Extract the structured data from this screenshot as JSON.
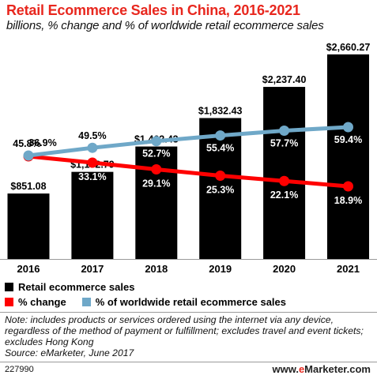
{
  "title": "Retail Ecommerce Sales in China, 2016-2021",
  "subtitle": "billions, % change and % of worldwide retail ecommerce sales",
  "chart_data": {
    "type": "bar",
    "categories": [
      "2016",
      "2017",
      "2018",
      "2019",
      "2020",
      "2021"
    ],
    "ylim": [
      0,
      2700
    ],
    "grid": false,
    "series": [
      {
        "name": "Retail ecommerce sales",
        "type": "bar",
        "color": "#000000",
        "values": [
          851.08,
          1132.79,
          1462.43,
          1832.43,
          2237.4,
          2660.27
        ],
        "labels": [
          "$851.08",
          "$1,132.79",
          "$1,462.43",
          "$1,832.43",
          "$2,237.40",
          "$2,660.27"
        ]
      },
      {
        "name": "% change",
        "type": "line",
        "color": "#ff0000",
        "values": [
          36.9,
          33.1,
          29.1,
          25.3,
          22.1,
          18.9
        ],
        "labels": [
          "36.9%",
          "33.1%",
          "29.1%",
          "25.3%",
          "22.1%",
          "18.9%"
        ]
      },
      {
        "name": "% of worldwide retail ecommerce sales",
        "type": "line",
        "color": "#6fa8c8",
        "values": [
          45.8,
          49.5,
          52.7,
          55.4,
          57.7,
          59.4
        ],
        "labels": [
          "45.8%",
          "49.5%",
          "52.7%",
          "55.4%",
          "57.7%",
          "59.4%"
        ]
      }
    ],
    "legend_position": "bottom"
  },
  "legend": {
    "items": [
      {
        "label": "Retail ecommerce sales",
        "color": "#000000"
      },
      {
        "label": "% change",
        "color": "#ff0000"
      },
      {
        "label": "% of worldwide retail ecommerce sales",
        "color": "#6fa8c8"
      }
    ]
  },
  "note": "Note: includes products or services ordered using the internet via any device, regardless of the method of payment or fulfillment; excludes travel and event tickets; excludes Hong Kong",
  "source": "Source: eMarketer, June 2017",
  "chart_id": "227990",
  "brand": {
    "prefix": "www.",
    "e": "e",
    "rest": "Marketer.com"
  }
}
